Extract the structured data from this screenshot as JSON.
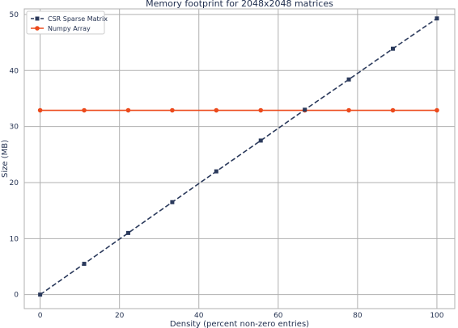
{
  "chart_data": {
    "type": "line",
    "title": "Memory footprint for 2048x2048 matrices",
    "xlabel": "Density (percent non-zero entries)",
    "ylabel": "Size (MB)",
    "xlim": [
      -4,
      104.5
    ],
    "ylim": [
      -2.5,
      51
    ],
    "x_ticks": [
      0,
      20,
      40,
      60,
      80,
      100
    ],
    "y_ticks": [
      0,
      10,
      20,
      30,
      40,
      50
    ],
    "x": [
      0,
      11.1,
      22.2,
      33.3,
      44.4,
      55.6,
      66.7,
      77.8,
      88.9,
      100
    ],
    "grid": true,
    "legend_position": "top-left",
    "series": [
      {
        "name": "CSR Sparse Matrix",
        "color": "#2b3a5c",
        "style": "dashed",
        "marker": "square",
        "values": [
          0,
          5.5,
          11.0,
          16.5,
          22.0,
          27.5,
          33.0,
          38.4,
          43.9,
          49.3
        ]
      },
      {
        "name": "Numpy Array",
        "color": "#ec4a1c",
        "style": "solid",
        "marker": "circle",
        "values": [
          32.9,
          32.9,
          32.9,
          32.9,
          32.9,
          32.9,
          32.9,
          32.9,
          32.9,
          32.9
        ]
      }
    ]
  }
}
